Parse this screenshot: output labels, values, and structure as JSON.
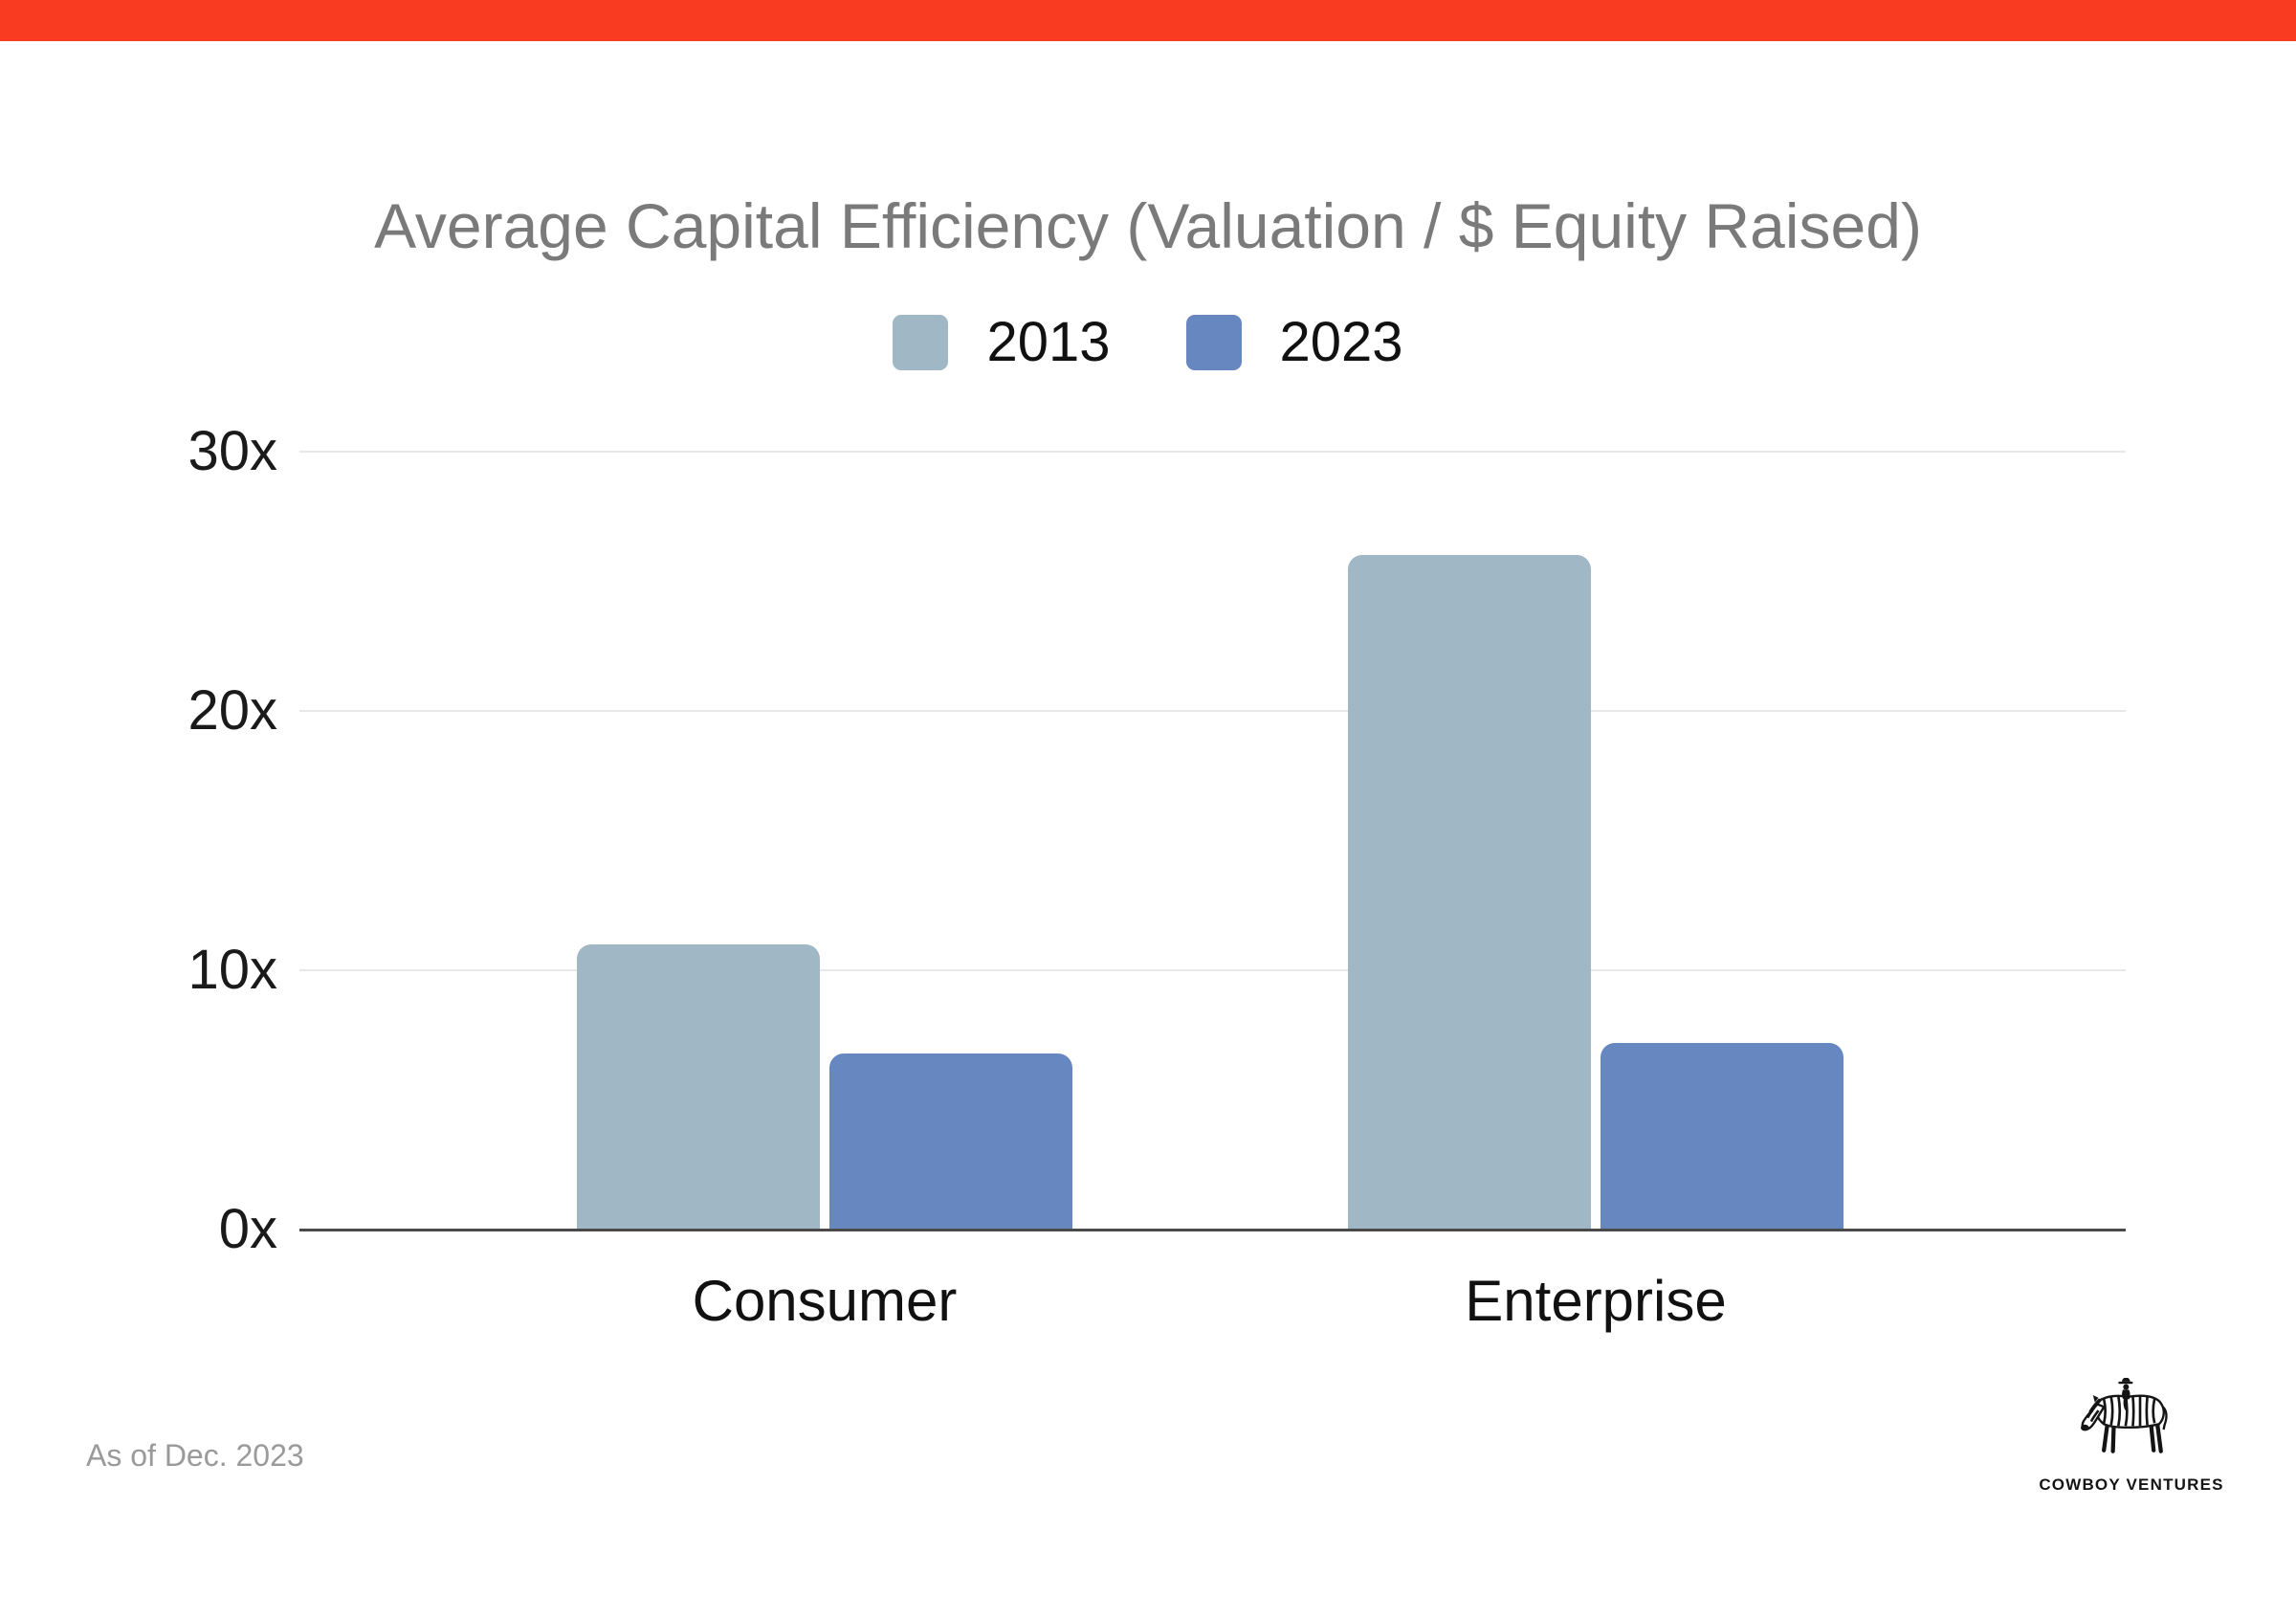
{
  "page": {
    "background": "#ffffff",
    "top_banner_color": "#f93b22"
  },
  "chart_data": {
    "type": "bar",
    "title": "Average Capital Efficiency (Valuation / $ Equity Raised)",
    "title_color": "#7a7a7a",
    "categories": [
      "Consumer",
      "Enterprise"
    ],
    "series": [
      {
        "name": "2013",
        "color": "#a0b7c6",
        "values": [
          11,
          26
        ]
      },
      {
        "name": "2023",
        "color": "#6787c1",
        "values": [
          6.8,
          7.2
        ]
      }
    ],
    "yticks": [
      {
        "label": "0x",
        "value": 0
      },
      {
        "label": "10x",
        "value": 10
      },
      {
        "label": "20x",
        "value": 20
      },
      {
        "label": "30x",
        "value": 30
      }
    ],
    "ylim": [
      0,
      30
    ],
    "xlabel": "",
    "ylabel": "",
    "grid": true,
    "legend_position": "top",
    "gridline_color": "#e8e8e8",
    "axis_color": "#4a4a4a",
    "tick_label_color": "#1a1a1a",
    "category_label_color": "#111111"
  },
  "footnote": {
    "text": "As of Dec. 2023",
    "color": "#9a9a9a"
  },
  "logo": {
    "text": "COWBOY VENTURES",
    "icon": "zebra-with-cowboy-rider",
    "color": "#141414"
  }
}
